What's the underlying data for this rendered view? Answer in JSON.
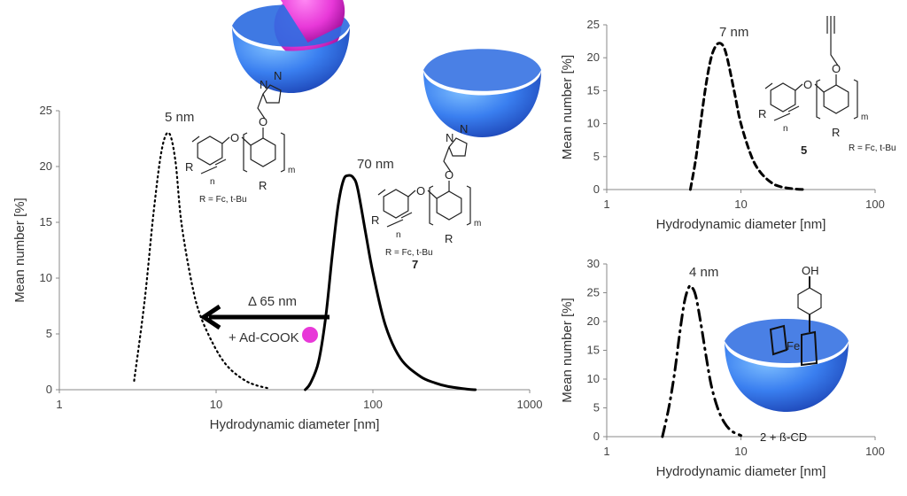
{
  "colors": {
    "axis": "#888888",
    "curve": "#000000",
    "cd_blue": "#3a7ff0",
    "guest_pink": "#e838d8"
  },
  "chart_data": [
    {
      "type": "line",
      "title": "",
      "xlabel": "Hydrodynamic  diameter [nm]",
      "ylabel": "Mean number  [%]",
      "xscale": "log",
      "xlim": [
        1,
        1000
      ],
      "ylim": [
        0,
        25
      ],
      "xticks": [
        "1",
        "10",
        "100",
        "1000"
      ],
      "yticks": [
        "0",
        "5",
        "10",
        "15",
        "20",
        "25"
      ],
      "grid": false,
      "series": [
        {
          "name": "5 nm",
          "style": "dotted",
          "x": [
            3.0,
            3.5,
            4.0,
            4.5,
            5.0,
            5.5,
            6.0,
            7.0,
            8.0,
            10.0,
            12.0,
            15.0,
            18.0,
            22.0
          ],
          "y": [
            0.8,
            8.0,
            16.0,
            21.5,
            23.0,
            20.5,
            15.0,
            9.5,
            6.5,
            3.6,
            2.0,
            0.9,
            0.4,
            0.1
          ]
        },
        {
          "name": "70 nm",
          "style": "solid",
          "x": [
            37,
            40,
            45,
            50,
            55,
            60,
            65,
            70,
            75,
            80,
            90,
            100,
            120,
            150,
            200,
            250,
            300,
            400,
            450
          ],
          "y": [
            0,
            0.6,
            2.5,
            6.5,
            12.0,
            16.5,
            18.8,
            19.2,
            19.0,
            18.0,
            14.0,
            10.5,
            5.8,
            2.8,
            1.2,
            0.6,
            0.3,
            0.05,
            0
          ]
        }
      ],
      "annotations": {
        "peak_5": "5 nm",
        "peak_70": "70 nm",
        "shift": "Δ 65 nm",
        "additive": "+ Ad-COOK"
      }
    },
    {
      "type": "line",
      "xlabel": "Hydrodynamic  diameter [nm]",
      "ylabel": "Mean number  [%]",
      "xscale": "log",
      "xlim": [
        1,
        100
      ],
      "ylim": [
        0,
        25
      ],
      "xticks": [
        "1",
        "10",
        "100"
      ],
      "yticks": [
        "0",
        "5",
        "10",
        "15",
        "20",
        "25"
      ],
      "series": [
        {
          "name": "7 nm",
          "style": "dashed",
          "x": [
            4.2,
            4.6,
            5.0,
            5.5,
            6.0,
            6.5,
            7.0,
            7.5,
            8.0,
            9.0,
            10.0,
            12.0,
            14.0,
            17.0,
            20.0,
            25.0,
            30.0
          ],
          "y": [
            0,
            4.5,
            10.0,
            16.0,
            20.0,
            21.8,
            22.2,
            21.5,
            19.5,
            14.5,
            10.0,
            5.0,
            2.6,
            1.0,
            0.4,
            0.1,
            0
          ]
        }
      ],
      "annotations": {
        "peak": "7 nm"
      }
    },
    {
      "type": "line",
      "xlabel": "Hydrodynamic  diameter [nm]",
      "ylabel": "Mean number  [%]",
      "xscale": "log",
      "xlim": [
        1,
        100
      ],
      "ylim": [
        0,
        30
      ],
      "xticks": [
        "1",
        "10",
        "100"
      ],
      "yticks": [
        "0",
        "5",
        "10",
        "15",
        "20",
        "25",
        "30"
      ],
      "series": [
        {
          "name": "4 nm",
          "style": "dashdot",
          "x": [
            2.6,
            2.9,
            3.2,
            3.5,
            3.8,
            4.1,
            4.3,
            4.6,
            5.0,
            5.5,
            6.0,
            6.7,
            7.5,
            8.5,
            10.0
          ],
          "y": [
            0,
            5.0,
            11.0,
            18.0,
            23.5,
            26.0,
            26.0,
            24.5,
            20.0,
            14.0,
            9.0,
            5.0,
            2.5,
            1.0,
            0.2
          ]
        }
      ],
      "annotations": {
        "peak": "4 nm"
      }
    }
  ],
  "structures": {
    "s1": {
      "N": "N",
      "N2": "N",
      "O": "O",
      "O2": "O",
      "R": "R",
      "R2": "R",
      "n": "n",
      "m": "m",
      "rdef": "R = Fc, t-Bu"
    },
    "s7": {
      "N": "N",
      "N2": "N",
      "O": "O",
      "O2": "O",
      "R": "R",
      "R2": "R",
      "n": "n",
      "m": "m",
      "rdef": "R = Fc, t-Bu",
      "label": "7"
    },
    "s5": {
      "O": "O",
      "O2": "O",
      "R": "R",
      "R2": "R",
      "n": "n",
      "m": "m",
      "rdef": "R = Fc, t-Bu",
      "label": "5"
    },
    "complex": {
      "oh": "OH",
      "fe": "Fe",
      "label": "2 + ß-CD"
    }
  }
}
